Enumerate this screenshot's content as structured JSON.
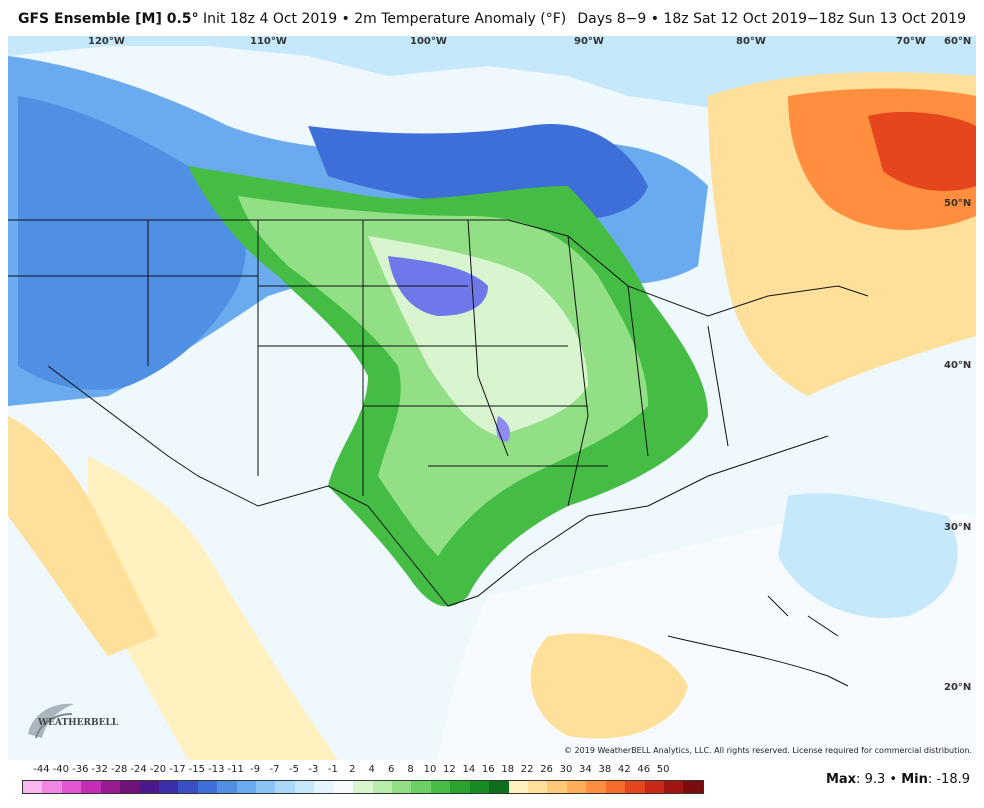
{
  "header": {
    "model": "GFS Ensemble [M] 0.5",
    "degree": "°",
    "init": " Init 18z 4 Oct 2019 • 2m Temperature Anomaly (°F)",
    "valid": "Days 8−9 • 18z Sat 12 Oct 2019−18z Sun 13 Oct 2019"
  },
  "longitude_labels": [
    "120°W",
    "110°W",
    "100°W",
    "90°W",
    "80°W",
    "70°W"
  ],
  "latitude_labels": [
    "60°N",
    "50°N",
    "40°N",
    "30°N",
    "20°N"
  ],
  "copyright": "© 2019 WeatherBELL Analytics, LLC. All rights reserved. License required for commercial distribution.",
  "logo": {
    "text": "WEATHERBELL"
  },
  "legend": {
    "ticks": [
      "-44",
      "-40",
      "-36",
      "-32",
      "-28",
      "-24",
      "-20",
      "-17",
      "-15",
      "-13",
      "-11",
      "-9",
      "-7",
      "-5",
      "-3",
      "-1",
      "2",
      "4",
      "6",
      "8",
      "10",
      "12",
      "14",
      "16",
      "18",
      "22",
      "26",
      "30",
      "34",
      "38",
      "42",
      "46",
      "50"
    ],
    "colors": [
      "#f9b7f0",
      "#f287e3",
      "#e356d2",
      "#c62eb6",
      "#9a1a92",
      "#6f1378",
      "#4a1a8c",
      "#3b2fa8",
      "#3a4fc4",
      "#3e6fd8",
      "#4f8fe4",
      "#6aaaee",
      "#8ac3f4",
      "#a9d8f8",
      "#c6e8fb",
      "#e4f4fd",
      "#f7fbff",
      "#d8f5d0",
      "#b7ecaa",
      "#93df86",
      "#6dd064",
      "#45bd45",
      "#2aa32f",
      "#1a8a24",
      "#0f6e1b",
      "#fff1c0",
      "#ffe09a",
      "#ffc978",
      "#ffae5a",
      "#ff8f3f",
      "#f66a2a",
      "#e5461d",
      "#c72a17",
      "#a11512",
      "#7a0c0f"
    ]
  },
  "stats": {
    "max_label": "Max",
    "max_value": "9.3",
    "sep": " • ",
    "min_label": "Min",
    "min_value": "-18.9"
  }
}
